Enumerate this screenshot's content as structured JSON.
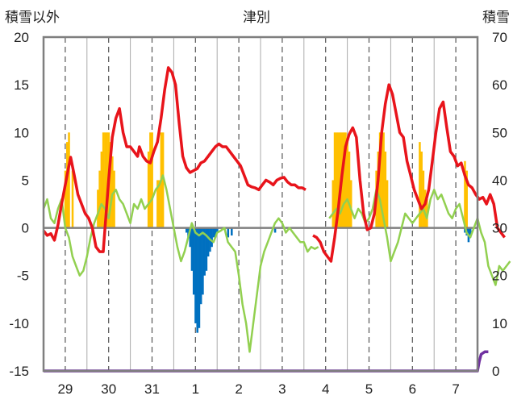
{
  "chart_data": {
    "type": "line",
    "title": "津別",
    "ylabel_left": "積雪以外",
    "ylabel_right": "積雪",
    "ylim_left": [
      -15,
      20
    ],
    "ylim_right": [
      0,
      70
    ],
    "yticks_left": [
      "20",
      "15",
      "10",
      "5",
      "0",
      "-5",
      "-10",
      "-15"
    ],
    "yticks_right": [
      "70",
      "60",
      "50",
      "40",
      "30",
      "20",
      "10",
      "0"
    ],
    "x_days": [
      "29",
      "30",
      "31",
      "1",
      "2",
      "3",
      "4",
      "5",
      "6",
      "7"
    ],
    "x_unit": "hour index (0-240, 24 per day)",
    "xlim": [
      0,
      240
    ],
    "grid": "dashed vertical at noon, solid at day boundary",
    "colors": {
      "temperature": "#e8141b",
      "green_series": "#92d050",
      "sunshine_bars": "#ffc000",
      "precip_bars": "#0070c0",
      "snow_depth": "#7030a0",
      "zero_line": "#7f7f7f",
      "frame": "#7f7f7f"
    },
    "temperature": [
      [
        0,
        -0.3
      ],
      [
        2,
        -0.8
      ],
      [
        4,
        -0.6
      ],
      [
        6,
        -1.3
      ],
      [
        8,
        0.3
      ],
      [
        10,
        2.5
      ],
      [
        12,
        4.5
      ],
      [
        14,
        6.5
      ],
      [
        15,
        7.4
      ],
      [
        17,
        5.5
      ],
      [
        19,
        3.5
      ],
      [
        21,
        2.5
      ],
      [
        23,
        1.5
      ],
      [
        25,
        1.0
      ],
      [
        27,
        0.0
      ],
      [
        29,
        -2.0
      ],
      [
        31,
        -2.5
      ],
      [
        33,
        -2.5
      ],
      [
        34,
        0.0
      ],
      [
        36,
        5.0
      ],
      [
        38,
        9.5
      ],
      [
        40,
        11.5
      ],
      [
        42,
        12.5
      ],
      [
        44,
        10.0
      ],
      [
        46,
        8.5
      ],
      [
        48,
        8.5
      ],
      [
        50,
        8.0
      ],
      [
        52,
        7.5
      ],
      [
        53,
        8.5
      ],
      [
        55,
        7.5
      ],
      [
        57,
        7.0
      ],
      [
        59,
        6.8
      ],
      [
        61,
        8.0
      ],
      [
        63,
        9.0
      ],
      [
        65,
        11.5
      ],
      [
        67,
        14.5
      ],
      [
        69,
        16.8
      ],
      [
        71,
        16.3
      ],
      [
        73,
        15.0
      ],
      [
        75,
        11.0
      ],
      [
        77,
        7.5
      ],
      [
        79,
        6.3
      ],
      [
        81,
        5.8
      ],
      [
        83,
        6.0
      ],
      [
        85,
        6.2
      ],
      [
        87,
        6.8
      ],
      [
        89,
        7.0
      ],
      [
        91,
        7.5
      ],
      [
        93,
        8.0
      ],
      [
        95,
        8.5
      ],
      [
        97,
        8.8
      ],
      [
        99,
        8.5
      ],
      [
        101,
        8.5
      ],
      [
        103,
        8.0
      ],
      [
        105,
        7.5
      ],
      [
        107,
        7.0
      ],
      [
        109,
        6.5
      ],
      [
        111,
        5.5
      ],
      [
        113,
        4.5
      ],
      [
        115,
        4.3
      ],
      [
        117,
        4.2
      ],
      [
        119,
        4.0
      ],
      [
        121,
        4.5
      ],
      [
        123,
        5.0
      ],
      [
        125,
        4.8
      ],
      [
        127,
        4.5
      ],
      [
        129,
        5.0
      ],
      [
        131,
        5.2
      ],
      [
        133,
        5.3
      ],
      [
        135,
        4.8
      ],
      [
        137,
        4.5
      ],
      [
        139,
        4.5
      ],
      [
        141,
        4.2
      ],
      [
        143,
        4.2
      ],
      [
        145,
        4.0
      ],
      null,
      [
        149,
        -0.8
      ],
      [
        151,
        -1.0
      ],
      [
        153,
        -1.5
      ],
      [
        155,
        -2.5
      ],
      [
        157,
        -3.0
      ],
      [
        159,
        -3.5
      ],
      [
        161,
        -1.0
      ],
      [
        163,
        2.0
      ],
      [
        165,
        5.5
      ],
      [
        167,
        8.5
      ],
      [
        169,
        9.8
      ],
      [
        171,
        10.5
      ],
      [
        173,
        9.5
      ],
      [
        175,
        5.0
      ],
      [
        177,
        1.5
      ],
      [
        179,
        -0.2
      ],
      [
        181,
        0.0
      ],
      [
        183,
        1.5
      ],
      [
        185,
        5.0
      ],
      [
        187,
        10.0
      ],
      [
        189,
        13.0
      ],
      [
        191,
        15.0
      ],
      [
        193,
        14.0
      ],
      [
        195,
        12.0
      ],
      [
        197,
        10.0
      ],
      [
        199,
        9.5
      ],
      [
        201,
        7.0
      ],
      [
        203,
        5.5
      ],
      [
        205,
        4.0
      ],
      [
        207,
        3.0
      ],
      [
        209,
        2.0
      ],
      [
        211,
        2.5
      ],
      [
        213,
        4.0
      ],
      [
        215,
        7.0
      ],
      [
        217,
        10.0
      ],
      [
        219,
        12.5
      ],
      [
        221,
        13.2
      ],
      [
        223,
        10.5
      ],
      [
        225,
        8.0
      ],
      [
        227,
        7.5
      ],
      [
        229,
        6.5
      ],
      [
        231,
        6.8
      ],
      [
        233,
        5.5
      ],
      [
        235,
        4.5
      ],
      [
        237,
        4.2
      ],
      [
        239,
        3.5
      ],
      [
        241,
        3.0
      ],
      [
        243,
        3.2
      ],
      [
        245,
        2.5
      ],
      [
        247,
        3.5
      ],
      [
        249,
        2.5
      ],
      [
        251,
        0.0
      ],
      [
        253,
        -0.5
      ],
      [
        255,
        -1.0
      ]
    ],
    "green": [
      [
        0,
        2.0
      ],
      [
        2,
        3.0
      ],
      [
        4,
        1.0
      ],
      [
        6,
        0.5
      ],
      [
        8,
        2.0
      ],
      [
        10,
        3.0
      ],
      [
        12,
        0.0
      ],
      [
        14,
        -1.0
      ],
      [
        16,
        -3.0
      ],
      [
        18,
        -4.0
      ],
      [
        20,
        -5.0
      ],
      [
        22,
        -4.5
      ],
      [
        24,
        -3.0
      ],
      [
        26,
        -1.0
      ],
      [
        28,
        0.5
      ],
      [
        30,
        1.5
      ],
      [
        32,
        2.5
      ],
      [
        34,
        2.0
      ],
      [
        36,
        1.0
      ],
      [
        38,
        3.5
      ],
      [
        40,
        4.0
      ],
      [
        42,
        3.0
      ],
      [
        44,
        2.5
      ],
      [
        46,
        1.5
      ],
      [
        48,
        0.5
      ],
      [
        50,
        2.5
      ],
      [
        52,
        2.0
      ],
      [
        54,
        3.0
      ],
      [
        56,
        2.0
      ],
      [
        58,
        2.5
      ],
      [
        60,
        3.0
      ],
      [
        62,
        4.0
      ],
      [
        64,
        4.5
      ],
      [
        66,
        5.5
      ],
      [
        68,
        4.0
      ],
      [
        70,
        2.0
      ],
      [
        72,
        0.0
      ],
      [
        74,
        -2.0
      ],
      [
        76,
        -3.5
      ],
      [
        78,
        -2.5
      ],
      [
        80,
        -1.0
      ],
      [
        82,
        0.5
      ],
      [
        84,
        -0.5
      ],
      [
        86,
        -0.8
      ],
      [
        88,
        -0.5
      ],
      [
        90,
        -0.8
      ],
      [
        92,
        -1.2
      ],
      [
        94,
        -1.5
      ],
      [
        96,
        -0.5
      ],
      [
        98,
        -0.3
      ],
      [
        100,
        0.0
      ],
      [
        102,
        -1.5
      ],
      [
        104,
        -2.0
      ],
      [
        106,
        -2.5
      ],
      [
        108,
        -5.0
      ],
      [
        110,
        -8.0
      ],
      [
        112,
        -10.0
      ],
      [
        114,
        -13.0
      ],
      [
        116,
        -10.0
      ],
      [
        118,
        -7.0
      ],
      [
        120,
        -4.0
      ],
      [
        122,
        -2.5
      ],
      [
        124,
        -1.5
      ],
      [
        126,
        -0.5
      ],
      [
        128,
        0.5
      ],
      [
        130,
        1.0
      ],
      [
        132,
        0.5
      ],
      [
        134,
        -0.5
      ],
      [
        136,
        0.0
      ],
      [
        138,
        -0.5
      ],
      [
        140,
        -1.0
      ],
      [
        142,
        -1.5
      ],
      [
        144,
        -1.5
      ],
      [
        146,
        -2.5
      ],
      [
        148,
        -2.0
      ],
      [
        150,
        -2.2
      ],
      [
        152,
        -2.0
      ],
      null,
      [
        158,
        1.0
      ],
      [
        160,
        1.5
      ],
      [
        162,
        2.0
      ],
      [
        164,
        1.5
      ],
      [
        166,
        2.5
      ],
      [
        168,
        3.0
      ],
      [
        170,
        2.0
      ],
      [
        172,
        1.0
      ],
      [
        174,
        2.0
      ],
      [
        176,
        1.5
      ],
      [
        178,
        0.5
      ],
      [
        180,
        1.0
      ],
      [
        182,
        2.0
      ],
      [
        184,
        4.0
      ],
      [
        186,
        3.0
      ],
      [
        188,
        1.0
      ],
      [
        190,
        -1.0
      ],
      [
        192,
        -3.5
      ],
      [
        194,
        -2.5
      ],
      [
        196,
        -1.5
      ],
      [
        198,
        0.0
      ],
      [
        200,
        1.5
      ],
      [
        202,
        1.0
      ],
      [
        204,
        0.5
      ],
      [
        206,
        1.0
      ],
      [
        208,
        1.5
      ],
      [
        210,
        2.0
      ],
      [
        212,
        1.0
      ],
      [
        214,
        3.0
      ],
      [
        216,
        4.0
      ],
      [
        218,
        3.0
      ],
      [
        220,
        3.5
      ],
      [
        222,
        2.5
      ],
      [
        224,
        1.5
      ],
      [
        226,
        1.0
      ],
      [
        228,
        2.0
      ],
      [
        230,
        2.5
      ],
      [
        232,
        1.0
      ],
      [
        234,
        -0.5
      ],
      [
        236,
        -1.0
      ],
      [
        238,
        0.0
      ],
      [
        240,
        1.0
      ],
      [
        242,
        -0.5
      ],
      [
        244,
        -1.5
      ],
      [
        246,
        -4.0
      ],
      [
        248,
        -5.0
      ],
      [
        250,
        -6.0
      ],
      [
        252,
        -4.0
      ],
      [
        254,
        -4.5
      ],
      [
        256,
        -4.0
      ],
      [
        258,
        -3.5
      ]
    ],
    "sunshine_bars": [
      [
        12,
        6.0
      ],
      [
        13,
        9.0
      ],
      [
        14,
        10.0
      ],
      [
        16,
        6.0
      ],
      [
        30,
        4.0
      ],
      [
        31,
        6.0
      ],
      [
        32,
        8.0
      ],
      [
        33,
        10.0
      ],
      [
        34,
        10.0
      ],
      [
        35,
        10.0
      ],
      [
        36,
        10.0
      ],
      [
        37,
        9.0
      ],
      [
        38,
        7.5
      ],
      [
        39,
        6.0
      ],
      [
        58,
        8.0
      ],
      [
        59,
        10.0
      ],
      [
        60,
        10.0
      ],
      [
        63,
        5.0
      ],
      [
        64,
        5.0
      ],
      [
        65,
        10.0
      ],
      [
        66,
        10.0
      ],
      [
        160,
        5.0
      ],
      [
        161,
        10.0
      ],
      [
        162,
        10.0
      ],
      [
        163,
        10.0
      ],
      [
        164,
        10.0
      ],
      [
        165,
        10.0
      ],
      [
        166,
        10.0
      ],
      [
        167,
        10.0
      ],
      [
        168,
        9.0
      ],
      [
        169,
        8.0
      ],
      [
        170,
        5.0
      ],
      [
        184,
        6.0
      ],
      [
        185,
        8.0
      ],
      [
        186,
        10.0
      ],
      [
        187,
        10.0
      ],
      [
        188,
        10.0
      ],
      [
        189,
        8.0
      ],
      [
        190,
        5.0
      ],
      [
        208,
        9.0
      ],
      [
        209,
        8.0
      ],
      [
        210,
        6.0
      ],
      [
        211,
        4.0
      ],
      [
        212,
        3.0
      ],
      [
        233,
        7.0
      ],
      [
        234,
        6.0
      ]
    ],
    "precip_bars": [
      [
        79,
        -0.5
      ],
      [
        80,
        -1.0
      ],
      [
        81,
        -2.0
      ],
      [
        82,
        -4.5
      ],
      [
        83,
        -7.0
      ],
      [
        84,
        -10.0
      ],
      [
        85,
        -11.0
      ],
      [
        86,
        -10.5
      ],
      [
        87,
        -8.0
      ],
      [
        88,
        -7.0
      ],
      [
        89,
        -5.0
      ],
      [
        90,
        -4.5
      ],
      [
        91,
        -3.0
      ],
      [
        92,
        -2.5
      ],
      [
        93,
        -2.0
      ],
      [
        94,
        -1.0
      ],
      [
        95,
        -1.0
      ],
      [
        96,
        -0.5
      ],
      [
        102,
        -1.0
      ],
      [
        104,
        -0.8
      ],
      [
        128,
        -0.5
      ],
      [
        233,
        -0.5
      ],
      [
        234,
        -0.8
      ],
      [
        235,
        -1.5
      ],
      [
        236,
        -1.0
      ]
    ],
    "snow_depth": [
      [
        0,
        0.0
      ],
      [
        240,
        0.0
      ],
      [
        241,
        2.0
      ],
      [
        242,
        3.5
      ],
      [
        244,
        4.0
      ],
      [
        246,
        4.0
      ]
    ]
  }
}
